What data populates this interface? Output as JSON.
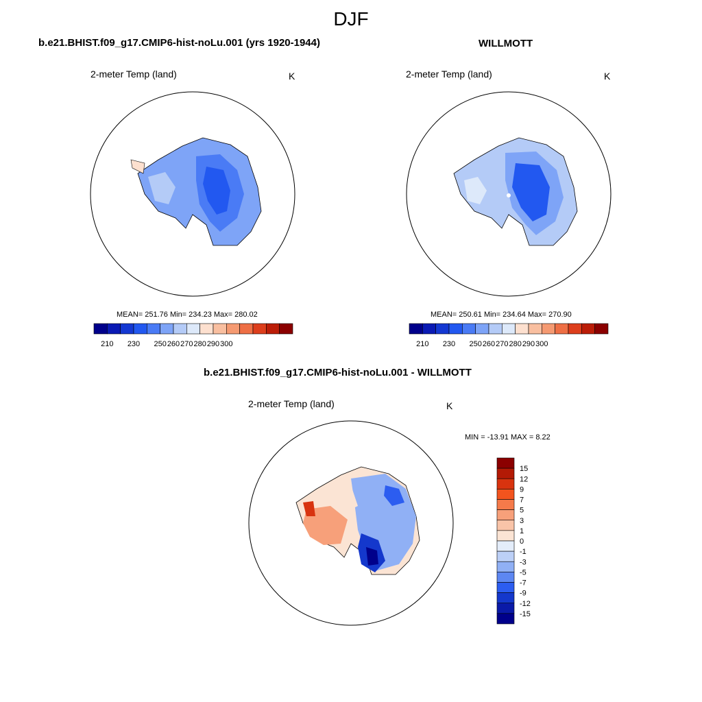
{
  "main_title": "DJF",
  "panels": [
    {
      "title": "b.e21.BHIST.f09_g17.CMIP6-hist-noLu.001 (yrs 1920-1944)",
      "variable": "2-meter Temp (land)",
      "units": "K",
      "stats": "MEAN= 251.76  Min= 234.23  Max= 280.02",
      "colorbar_labels": [
        "210",
        "230",
        "250",
        "260",
        "270",
        "280",
        "290",
        "300"
      ]
    },
    {
      "title": "WILLMOTT",
      "variable": "2-meter Temp (land)",
      "units": "K",
      "stats": "MEAN= 250.61  Min= 234.64  Max= 270.90",
      "colorbar_labels": [
        "210",
        "230",
        "250",
        "260",
        "270",
        "280",
        "290",
        "300"
      ]
    },
    {
      "title": "b.e21.BHIST.f09_g17.CMIP6-hist-noLu.001 - WILLMOTT",
      "variable": "2-meter Temp (land)",
      "units": "K",
      "stats": "MIN = -13.91 MAX =   8.22",
      "colorbar_labels": [
        "15",
        "12",
        "9",
        "7",
        "5",
        "3",
        "1",
        "0",
        "-1",
        "-3",
        "-5",
        "-7",
        "-9",
        "-12",
        "-15"
      ]
    }
  ],
  "colors": {
    "temp_scale": [
      "#00008b",
      "#0a1ab4",
      "#1438d2",
      "#2258f0",
      "#4a7bf5",
      "#7ea4f7",
      "#b4cbf7",
      "#dde9fa",
      "#fde0cf",
      "#f9bfa0",
      "#f59a72",
      "#ee6f45",
      "#dd3e1c",
      "#bb1d08",
      "#8b0000"
    ],
    "diff_scale": [
      "#8b0000",
      "#b31a05",
      "#d8330f",
      "#f2541e",
      "#f57a4a",
      "#f7a07a",
      "#f9c4a8",
      "#fbe4d4",
      "#e4edfa",
      "#bcd0f7",
      "#90b0f5",
      "#5d87f2",
      "#2c5df0",
      "#1438cc",
      "#0a1aa8",
      "#00008b"
    ]
  }
}
